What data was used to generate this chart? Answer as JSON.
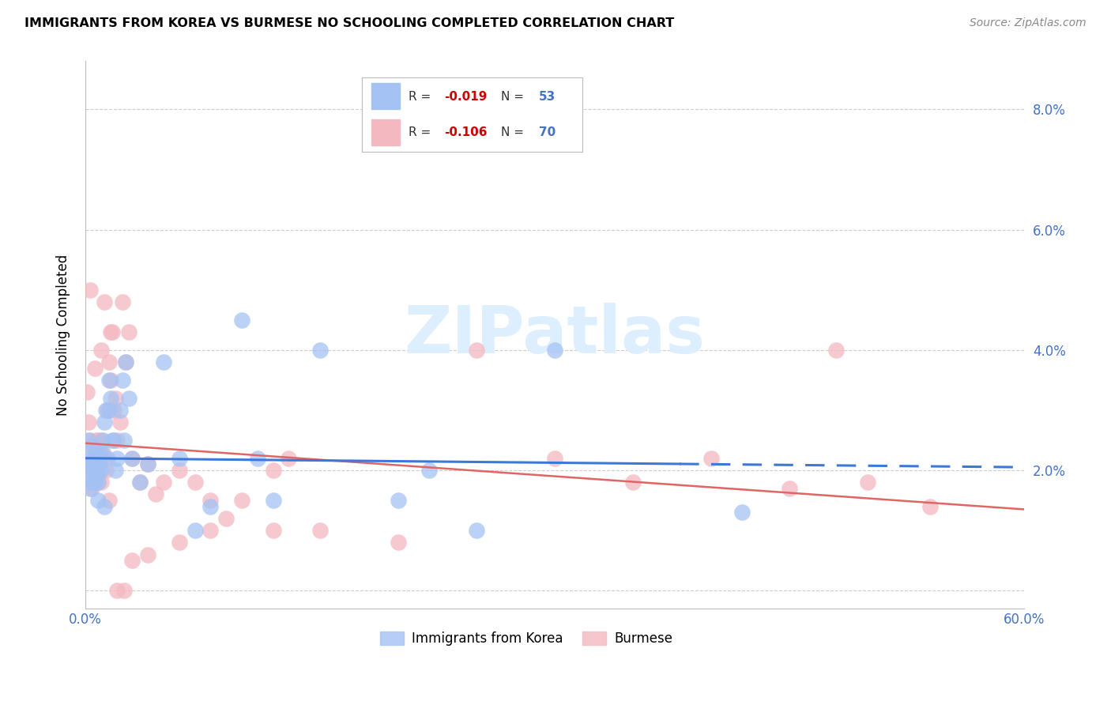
{
  "title": "IMMIGRANTS FROM KOREA VS BURMESE NO SCHOOLING COMPLETED CORRELATION CHART",
  "source": "Source: ZipAtlas.com",
  "ylabel": "No Schooling Completed",
  "xlim": [
    0.0,
    0.6
  ],
  "ylim": [
    -0.003,
    0.088
  ],
  "yticks": [
    0.0,
    0.02,
    0.04,
    0.06,
    0.08
  ],
  "ytick_labels": [
    "",
    "2.0%",
    "4.0%",
    "6.0%",
    "8.0%"
  ],
  "korea_color": "#a4c2f4",
  "burmese_color": "#f4b8c1",
  "trend_korea_color": "#3c78d8",
  "trend_burmese_color": "#e06666",
  "watermark_color": "#ddeeff",
  "korea_x": [
    0.001,
    0.002,
    0.002,
    0.003,
    0.003,
    0.004,
    0.004,
    0.005,
    0.005,
    0.006,
    0.006,
    0.007,
    0.007,
    0.008,
    0.008,
    0.009,
    0.009,
    0.01,
    0.01,
    0.011,
    0.012,
    0.013,
    0.014,
    0.015,
    0.016,
    0.017,
    0.018,
    0.019,
    0.02,
    0.022,
    0.024,
    0.026,
    0.028,
    0.03,
    0.035,
    0.04,
    0.05,
    0.06,
    0.08,
    0.1,
    0.12,
    0.15,
    0.2,
    0.22,
    0.25,
    0.3,
    0.42,
    0.025,
    0.015,
    0.012,
    0.008,
    0.07,
    0.11
  ],
  "korea_y": [
    0.021,
    0.025,
    0.019,
    0.022,
    0.017,
    0.024,
    0.018,
    0.02,
    0.021,
    0.022,
    0.018,
    0.023,
    0.019,
    0.02,
    0.018,
    0.021,
    0.022,
    0.023,
    0.02,
    0.025,
    0.028,
    0.03,
    0.022,
    0.03,
    0.032,
    0.025,
    0.025,
    0.02,
    0.022,
    0.03,
    0.035,
    0.038,
    0.032,
    0.022,
    0.018,
    0.021,
    0.038,
    0.022,
    0.014,
    0.045,
    0.015,
    0.04,
    0.015,
    0.02,
    0.01,
    0.04,
    0.013,
    0.025,
    0.035,
    0.014,
    0.015,
    0.01,
    0.022
  ],
  "burmese_x": [
    0.001,
    0.001,
    0.002,
    0.002,
    0.003,
    0.003,
    0.004,
    0.004,
    0.005,
    0.005,
    0.006,
    0.006,
    0.007,
    0.007,
    0.008,
    0.008,
    0.009,
    0.009,
    0.01,
    0.01,
    0.011,
    0.012,
    0.013,
    0.014,
    0.015,
    0.016,
    0.017,
    0.018,
    0.019,
    0.02,
    0.022,
    0.024,
    0.026,
    0.028,
    0.03,
    0.035,
    0.04,
    0.045,
    0.05,
    0.06,
    0.07,
    0.08,
    0.09,
    0.1,
    0.12,
    0.13,
    0.15,
    0.2,
    0.25,
    0.3,
    0.35,
    0.4,
    0.45,
    0.5,
    0.003,
    0.006,
    0.01,
    0.015,
    0.02,
    0.025,
    0.03,
    0.04,
    0.06,
    0.08,
    0.12,
    0.008,
    0.012,
    0.016,
    0.54,
    0.48
  ],
  "burmese_y": [
    0.033,
    0.021,
    0.028,
    0.019,
    0.025,
    0.018,
    0.022,
    0.017,
    0.024,
    0.02,
    0.023,
    0.018,
    0.025,
    0.019,
    0.022,
    0.018,
    0.024,
    0.02,
    0.025,
    0.018,
    0.023,
    0.022,
    0.02,
    0.03,
    0.038,
    0.035,
    0.043,
    0.03,
    0.032,
    0.025,
    0.028,
    0.048,
    0.038,
    0.043,
    0.022,
    0.018,
    0.021,
    0.016,
    0.018,
    0.02,
    0.018,
    0.015,
    0.012,
    0.015,
    0.02,
    0.022,
    0.01,
    0.008,
    0.04,
    0.022,
    0.018,
    0.022,
    0.017,
    0.018,
    0.05,
    0.037,
    0.04,
    0.015,
    0.0,
    0.0,
    0.005,
    0.006,
    0.008,
    0.01,
    0.01,
    0.025,
    0.048,
    0.043,
    0.014,
    0.04
  ],
  "korea_trend_x0": 0.0,
  "korea_trend_x1": 0.6,
  "korea_trend_y0": 0.022,
  "korea_trend_y1": 0.0205,
  "burmese_trend_x0": 0.0,
  "burmese_trend_x1": 0.6,
  "burmese_trend_y0": 0.0245,
  "burmese_trend_y1": 0.0135
}
